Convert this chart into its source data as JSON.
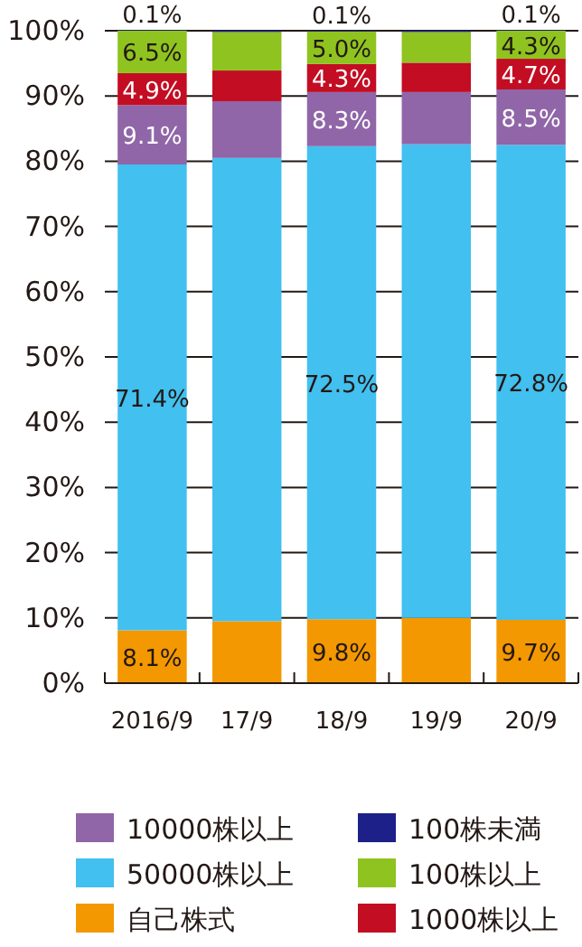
{
  "chart_data": {
    "type": "bar",
    "stacked": true,
    "categories": [
      "2016/9",
      "17/9",
      "18/9",
      "19/9",
      "20/9"
    ],
    "ylim": [
      0,
      100
    ],
    "yticks": [
      {
        "value": 0,
        "label": "0%"
      },
      {
        "value": 10,
        "label": "10%"
      },
      {
        "value": 20,
        "label": "20%"
      },
      {
        "value": 30,
        "label": "30%"
      },
      {
        "value": 40,
        "label": "40%"
      },
      {
        "value": 50,
        "label": "50%"
      },
      {
        "value": 60,
        "label": "60%"
      },
      {
        "value": 70,
        "label": "70%"
      },
      {
        "value": 80,
        "label": "80%"
      },
      {
        "value": 90,
        "label": "90%"
      },
      {
        "value": 100,
        "label": "100%"
      }
    ],
    "grid": "y",
    "legend": "bottom",
    "series": [
      {
        "name": "自己株式",
        "color": "#f39800",
        "values": [
          8.1,
          9.5,
          9.8,
          10.0,
          9.7
        ],
        "value_labels": [
          "8.1%",
          null,
          "9.8%",
          null,
          "9.7%"
        ]
      },
      {
        "name": "50000株以上",
        "color": "#42c0ef",
        "values": [
          71.4,
          71.0,
          72.5,
          72.6,
          72.8
        ],
        "value_labels": [
          "71.4%",
          null,
          "72.5%",
          null,
          "72.8%"
        ]
      },
      {
        "name": "10000株以上",
        "color": "#9066a8",
        "values": [
          9.1,
          8.7,
          8.3,
          8.0,
          8.5
        ],
        "value_labels": [
          "9.1%",
          null,
          "8.3%",
          null,
          "8.5%"
        ]
      },
      {
        "name": "1000株以上",
        "color": "#c30d23",
        "values": [
          4.9,
          4.7,
          4.3,
          4.5,
          4.7
        ],
        "value_labels": [
          "4.9%",
          null,
          "4.3%",
          null,
          "4.7%"
        ]
      },
      {
        "name": "100株以上",
        "color": "#8fc31f",
        "values": [
          6.5,
          5.9,
          5.0,
          4.7,
          4.3
        ],
        "value_labels": [
          "6.5%",
          null,
          "5.0%",
          null,
          "4.3%"
        ]
      },
      {
        "name": "100株未満",
        "color": "#1d2088",
        "values": [
          0.1,
          0.2,
          0.1,
          0.2,
          0.1
        ],
        "value_labels": [
          "0.1%",
          null,
          "0.1%",
          null,
          "0.1%"
        ]
      }
    ]
  }
}
